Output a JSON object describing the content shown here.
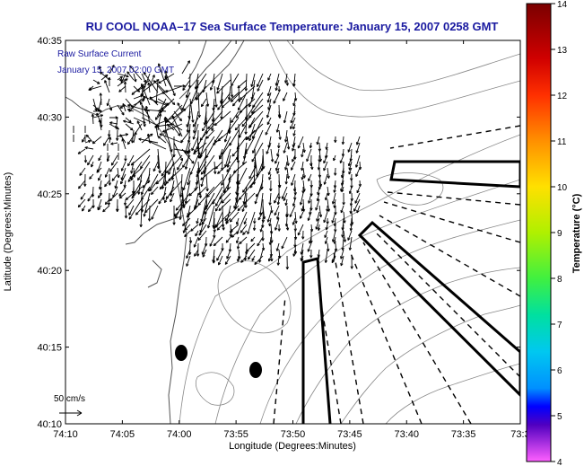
{
  "title": "RU COOL  NOAA–17  Sea Surface Temperature:  January 15, 2007 0258 GMT",
  "legend": {
    "line1": "Raw Surface Current",
    "line2": "January 15, 2007 02:00 GMT",
    "color": "#1a1aa0"
  },
  "axes": {
    "xlabel": "Longitude (Degrees:Minutes)",
    "ylabel": "Latitude (Degrees:Minutes)",
    "xticks": [
      "74:10",
      "74:05",
      "74:00",
      "73:55",
      "73:50",
      "73:45",
      "73:40",
      "73:35",
      "73:3"
    ],
    "yticks": [
      "40:35",
      "40:30",
      "40:25",
      "40:20",
      "40:15",
      "40:10"
    ]
  },
  "scale": {
    "label": "50 cm/s"
  },
  "colorbar": {
    "label": "Temperature (°C)",
    "ticks": [
      "14",
      "13",
      "12",
      "11",
      "10",
      "9",
      "8",
      "7",
      "6",
      "5",
      "4"
    ],
    "stops": [
      "#7a0000",
      "#d00000",
      "#ff3000",
      "#ff9000",
      "#ffe000",
      "#b0f000",
      "#40f040",
      "#00e0a0",
      "#00c8f0",
      "#0090ff",
      "#0000ff",
      "#5000c0",
      "#ff60ff"
    ]
  },
  "map": {
    "markers": [
      {
        "name": "station-marker-1"
      },
      {
        "name": "station-marker-2"
      }
    ]
  }
}
